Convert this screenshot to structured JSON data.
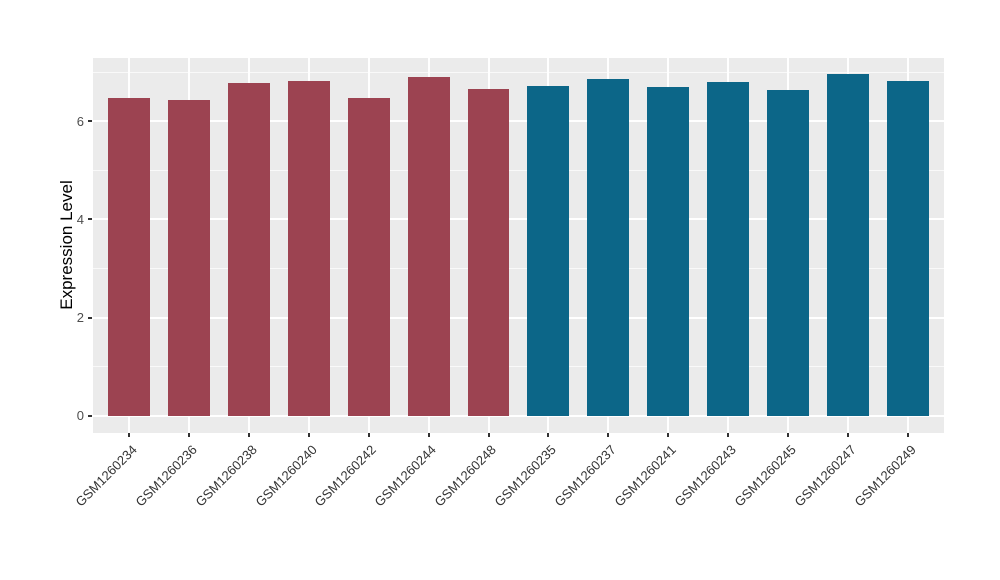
{
  "chart_data": {
    "type": "bar",
    "title": "",
    "xlabel": "",
    "ylabel": "Expression Level",
    "categories": [
      "GSM1260234",
      "GSM1260236",
      "GSM1260238",
      "GSM1260240",
      "GSM1260242",
      "GSM1260244",
      "GSM1260248",
      "GSM1260235",
      "GSM1260237",
      "GSM1260241",
      "GSM1260243",
      "GSM1260245",
      "GSM1260247",
      "GSM1260249"
    ],
    "values": [
      6.48,
      6.43,
      6.79,
      6.83,
      6.48,
      6.9,
      6.66,
      6.71,
      6.86,
      6.69,
      6.8,
      6.63,
      6.96,
      6.82
    ],
    "bar_colors": [
      "#9C4351",
      "#9C4351",
      "#9C4351",
      "#9C4351",
      "#9C4351",
      "#9C4351",
      "#9C4351",
      "#0C6688",
      "#0C6688",
      "#0C6688",
      "#0C6688",
      "#0C6688",
      "#0C6688",
      "#0C6688"
    ],
    "group_palette": {
      "left_group": "#9C4351",
      "right_group": "#0C6688"
    },
    "yticks": [
      0,
      2,
      4,
      6
    ],
    "minor_yticks": [
      1,
      3,
      5,
      7
    ],
    "ylim": [
      -0.35,
      7.29
    ],
    "grid": true,
    "legend_position": "none",
    "panel_bg": "#EBEBEB",
    "grid_color": "#FFFFFF",
    "tick_mark_color": "#333333",
    "xtick_label_rotation_deg": 45
  }
}
